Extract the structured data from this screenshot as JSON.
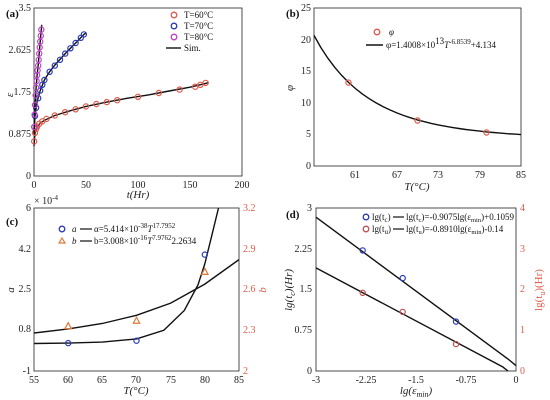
{
  "chart_data": [
    {
      "panel": "(a)",
      "type": "scatter",
      "xlabel": "t(Hr)",
      "ylabel": "ε",
      "xlim": [
        0,
        200
      ],
      "ylim": [
        0,
        3.5
      ],
      "xticks": [
        "0",
        "50",
        "100",
        "150",
        "200"
      ],
      "yticks": [
        "0",
        "0.875",
        "1.75",
        "2.625",
        "3.5"
      ],
      "legend_position": "top-right",
      "legend": [
        "T=60°C",
        "T=70°C",
        "T=80°C",
        "Sim."
      ],
      "series": [
        {
          "name": "T=60°C",
          "color": "#e05a4a",
          "points": [
            [
              0.2,
              0.72
            ],
            [
              1,
              0.9
            ],
            [
              2,
              0.98
            ],
            [
              3,
              1.03
            ],
            [
              5,
              1.09
            ],
            [
              8,
              1.14
            ],
            [
              12,
              1.19
            ],
            [
              20,
              1.26
            ],
            [
              30,
              1.33
            ],
            [
              40,
              1.39
            ],
            [
              50,
              1.45
            ],
            [
              60,
              1.5
            ],
            [
              70,
              1.54
            ],
            [
              80,
              1.58
            ],
            [
              100,
              1.65
            ],
            [
              120,
              1.73
            ],
            [
              140,
              1.8
            ],
            [
              155,
              1.86
            ],
            [
              160,
              1.9
            ],
            [
              165,
              1.94
            ]
          ],
          "fit": [
            [
              0,
              0.62
            ],
            [
              1,
              0.9
            ],
            [
              3,
              1.01
            ],
            [
              6,
              1.1
            ],
            [
              10,
              1.16
            ],
            [
              20,
              1.26
            ],
            [
              35,
              1.36
            ],
            [
              50,
              1.45
            ],
            [
              70,
              1.54
            ],
            [
              90,
              1.62
            ],
            [
              110,
              1.69
            ],
            [
              130,
              1.77
            ],
            [
              150,
              1.85
            ],
            [
              165,
              1.93
            ],
            [
              168,
              1.95
            ]
          ]
        },
        {
          "name": "T=70°C",
          "color": "#2a3ab5",
          "points": [
            [
              0.3,
              1.02
            ],
            [
              1,
              1.25
            ],
            [
              2,
              1.42
            ],
            [
              4,
              1.62
            ],
            [
              6,
              1.78
            ],
            [
              8,
              1.9
            ],
            [
              10,
              2.0
            ],
            [
              15,
              2.17
            ],
            [
              20,
              2.3
            ],
            [
              25,
              2.42
            ],
            [
              30,
              2.55
            ],
            [
              35,
              2.66
            ],
            [
              40,
              2.77
            ],
            [
              45,
              2.88
            ],
            [
              48,
              2.95
            ]
          ],
          "fit": [
            [
              0,
              0.88
            ],
            [
              1,
              1.25
            ],
            [
              3,
              1.55
            ],
            [
              6,
              1.78
            ],
            [
              10,
              2.0
            ],
            [
              15,
              2.17
            ],
            [
              20,
              2.31
            ],
            [
              30,
              2.55
            ],
            [
              40,
              2.77
            ],
            [
              48,
              2.95
            ],
            [
              50,
              2.98
            ]
          ]
        },
        {
          "name": "T=80°C",
          "color": "#c040c8",
          "points": [
            [
              0.3,
              1.02
            ],
            [
              0.6,
              1.28
            ],
            [
              1,
              1.48
            ],
            [
              1.5,
              1.68
            ],
            [
              2,
              1.84
            ],
            [
              2.5,
              1.98
            ],
            [
              3,
              2.1
            ],
            [
              3.5,
              2.2
            ],
            [
              4,
              2.3
            ],
            [
              4.5,
              2.42
            ],
            [
              5,
              2.55
            ],
            [
              5.5,
              2.68
            ],
            [
              6,
              2.8
            ],
            [
              6.5,
              2.92
            ],
            [
              7,
              3.05
            ]
          ],
          "fit": [
            [
              0,
              0.9
            ],
            [
              0.5,
              1.2
            ],
            [
              1,
              1.48
            ],
            [
              2,
              1.84
            ],
            [
              3,
              2.1
            ],
            [
              4,
              2.31
            ],
            [
              5,
              2.55
            ],
            [
              6,
              2.8
            ],
            [
              7,
              3.05
            ],
            [
              7.5,
              3.15
            ]
          ]
        }
      ]
    },
    {
      "panel": "(b)",
      "type": "scatter",
      "xlabel": "T(°C)",
      "ylabel": "φ",
      "xlim": [
        55,
        85
      ],
      "ylim": [
        0,
        25
      ],
      "xticks": [
        "61",
        "67",
        "73",
        "79",
        "85"
      ],
      "yticks": [
        "0",
        "5",
        "10",
        "15",
        "20",
        "25"
      ],
      "legend_position": "top-right",
      "legend": [
        "φ",
        "φ=1.4008×10",
        "13",
        "T",
        "-6.8539",
        "+4.134"
      ],
      "points": [
        [
          60,
          13.2
        ],
        [
          70,
          7.2
        ],
        [
          80,
          5.3
        ]
      ],
      "fit_range": [
        55,
        85
      ],
      "fit_coef": {
        "a": 14008000000000.0,
        "n": -6.8539,
        "c": 4.134
      },
      "point_color": "#e05a4a"
    },
    {
      "panel": "(c)",
      "type": "scatter",
      "xlabel": "T(°C)",
      "ylabel": "a",
      "ylabel_right": "b",
      "y_multiplier": "× 10",
      "y_multiplier_exp": "-4",
      "xlim": [
        55,
        85
      ],
      "ylim": [
        -1,
        6
      ],
      "ylim_right": [
        2,
        3.2
      ],
      "xticks": [
        "55",
        "60",
        "65",
        "70",
        "75",
        "80",
        "85"
      ],
      "yticks": [
        "-1",
        "0.8",
        "2.5",
        "4.2",
        "6"
      ],
      "yticks_right": [
        "2",
        "2.3",
        "2.6",
        "2.9",
        "3.2"
      ],
      "legend_position": "top-left",
      "legend": [
        "a",
        "α=5.414×10",
        "-38",
        "T",
        "17.7952",
        "b",
        "b=3.008×10",
        "-16",
        "T",
        "7.9762",
        "2.2634"
      ],
      "series": [
        {
          "name": "a",
          "color": "#2a3ab5",
          "marker": "circle",
          "axis": "left",
          "points": [
            [
              60,
              0.2
            ],
            [
              70,
              0.3
            ],
            [
              80,
              4.0
            ]
          ]
        },
        {
          "name": "b",
          "color": "#e07a3a",
          "marker": "triangle",
          "axis": "right",
          "points": [
            [
              60,
              2.33
            ],
            [
              70,
              2.37
            ],
            [
              80,
              2.73
            ]
          ]
        }
      ],
      "fit_a": [
        [
          55,
          0.18
        ],
        [
          60,
          0.2
        ],
        [
          65,
          0.24
        ],
        [
          70,
          0.38
        ],
        [
          74,
          0.75
        ],
        [
          77,
          1.6
        ],
        [
          79,
          2.7
        ],
        [
          80,
          3.6
        ],
        [
          81,
          4.8
        ],
        [
          82,
          6.0
        ]
      ],
      "fit_b": [
        [
          55,
          2.28
        ],
        [
          60,
          2.31
        ],
        [
          65,
          2.35
        ],
        [
          70,
          2.41
        ],
        [
          75,
          2.5
        ],
        [
          80,
          2.64
        ],
        [
          85,
          2.82
        ]
      ]
    },
    {
      "panel": "(d)",
      "type": "scatter",
      "xlabel": "lg(ε",
      "xlabel_sub": "min",
      "xlabel_tail": ")",
      "ylabel": "lg(t",
      "ylabel_sub": "c",
      "ylabel_tail": ")(Hr)",
      "ylabel_right": "lg(t",
      "ylabel_right_sub": "u",
      "ylabel_right_tail": ")(Hr)",
      "xlim": [
        -3,
        0
      ],
      "ylim": [
        0,
        3
      ],
      "ylim_right": [
        0,
        4
      ],
      "xticks": [
        "-3",
        "-2.25",
        "-1.5",
        "-0.75",
        "0"
      ],
      "yticks": [
        "0",
        "0.75",
        "1.5",
        "2.25",
        "3"
      ],
      "yticks_right": [
        "0",
        "1",
        "2",
        "3",
        "4"
      ],
      "legend_position": "top-left",
      "legend": [
        "lg(t",
        "c",
        ")",
        "lg(t",
        "c",
        ")=-0.9075lg(ε",
        "min",
        ")+0.1059",
        "lg(t",
        "u",
        ")",
        "lg(t",
        "u",
        ")=-0.8910lg(ε",
        "min",
        ")-0.14"
      ],
      "series": [
        {
          "name": "lg(tc)",
          "color": "#2a3ab5",
          "axis": "left",
          "points": [
            [
              -2.3,
              2.22
            ],
            [
              -1.7,
              1.71
            ],
            [
              -0.9,
              0.91
            ]
          ],
          "fit": [
            [
              -3,
              2.83
            ],
            [
              -0.12,
              0.22
            ],
            [
              0,
              0.1
            ]
          ]
        },
        {
          "name": "lg(tu)",
          "color": "#c0504d",
          "axis": "right",
          "points": [
            [
              -2.3,
              1.92
            ],
            [
              -1.7,
              1.45
            ],
            [
              -0.9,
              0.66
            ]
          ],
          "fit": [
            [
              -3,
              2.53
            ],
            [
              -0.2,
              0.1
            ],
            [
              -0.12,
              0.0
            ]
          ]
        }
      ]
    }
  ]
}
